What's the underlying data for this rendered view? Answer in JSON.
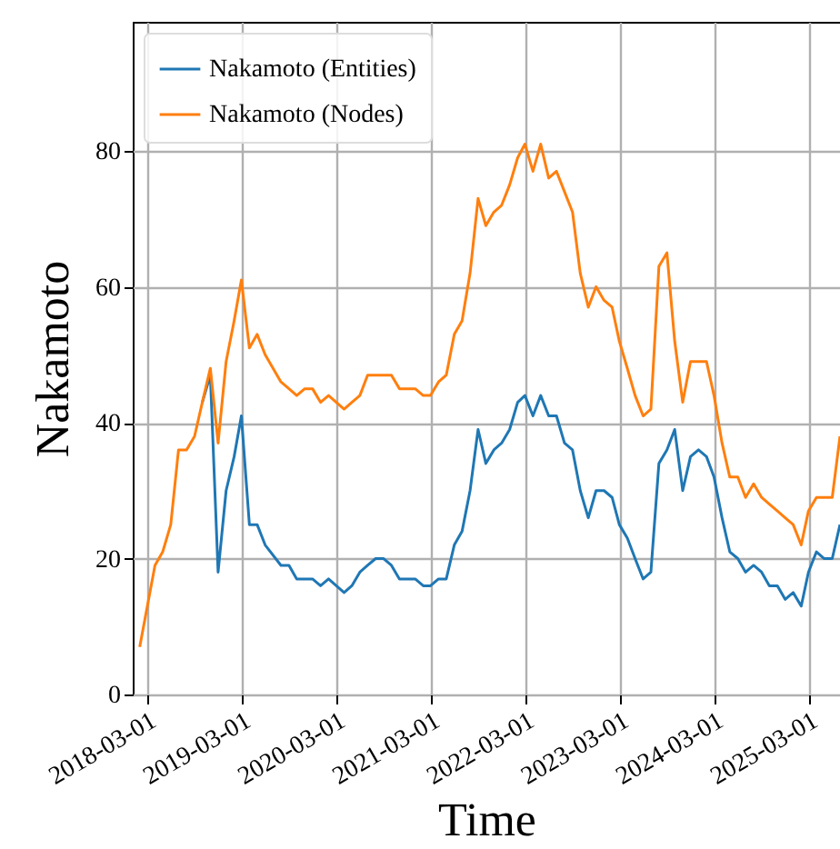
{
  "chart_data": {
    "type": "line",
    "xlabel": "Time",
    "ylabel": "Nakamoto",
    "x": [
      "2018-02-01",
      "2018-04-01",
      "2018-05-01",
      "2018-06-01",
      "2018-07-01",
      "2018-08-01",
      "2018-09-01",
      "2018-10-01",
      "2018-11-01",
      "2018-12-01",
      "2019-01-01",
      "2019-02-01",
      "2019-03-01",
      "2019-04-01",
      "2019-05-01",
      "2019-06-01",
      "2019-08-01",
      "2019-09-01",
      "2019-10-01",
      "2019-11-01",
      "2019-12-01",
      "2020-01-01",
      "2020-02-01",
      "2020-04-01",
      "2020-05-01",
      "2020-06-01",
      "2020-07-01",
      "2020-08-01",
      "2020-09-01",
      "2020-10-01",
      "2020-11-01",
      "2021-01-01",
      "2021-02-01",
      "2021-03-01",
      "2021-04-01",
      "2021-05-01",
      "2021-06-01",
      "2021-07-01",
      "2021-08-01",
      "2021-09-01",
      "2021-10-01",
      "2021-11-01",
      "2021-12-01",
      "2022-01-01",
      "2022-02-01",
      "2022-03-01",
      "2022-04-01",
      "2022-05-01",
      "2022-06-01",
      "2022-07-01",
      "2022-08-01",
      "2022-09-01",
      "2022-10-01",
      "2022-11-01",
      "2022-12-01",
      "2023-01-01",
      "2023-02-01",
      "2023-03-01",
      "2023-04-01",
      "2023-05-01",
      "2023-06-01",
      "2023-07-01",
      "2023-08-01",
      "2023-09-01",
      "2023-10-01",
      "2023-11-01",
      "2023-12-01",
      "2024-01-01",
      "2024-02-01",
      "2024-03-01",
      "2024-04-01",
      "2024-05-01",
      "2024-06-01",
      "2024-07-01",
      "2024-08-01",
      "2024-09-01",
      "2024-10-01",
      "2024-11-01",
      "2024-12-01",
      "2025-01-01",
      "2025-02-01",
      "2025-03-01",
      "2025-04-01",
      "2025-05-01",
      "2025-06-01",
      "2025-07-01"
    ],
    "series": [
      {
        "name": "Nakamoto (Entities)",
        "color": "#1f77b4",
        "values": [
          null,
          null,
          null,
          null,
          null,
          null,
          null,
          43,
          47,
          18,
          30,
          35,
          41,
          25,
          25,
          22,
          19,
          19,
          17,
          17,
          17,
          16,
          17,
          15,
          16,
          18,
          19,
          20,
          20,
          19,
          17,
          17,
          16,
          16,
          17,
          17,
          22,
          24,
          30,
          39,
          34,
          36,
          37,
          39,
          43,
          44,
          41,
          44,
          41,
          41,
          37,
          36,
          30,
          26,
          30,
          30,
          29,
          25,
          23,
          20,
          17,
          18,
          34,
          36,
          39,
          30,
          35,
          36,
          35,
          32,
          26,
          21,
          20,
          18,
          19,
          18,
          16,
          16,
          14,
          15,
          13,
          18,
          21,
          20,
          20,
          25
        ]
      },
      {
        "name": "Nakamoto (Nodes)",
        "color": "#ff7f0e",
        "values": [
          7,
          19,
          21,
          25,
          36,
          36,
          38,
          43,
          48,
          37,
          49,
          55,
          61,
          51,
          53,
          50,
          46,
          45,
          44,
          45,
          45,
          43,
          44,
          42,
          43,
          44,
          47,
          47,
          47,
          47,
          45,
          45,
          44,
          44,
          46,
          47,
          53,
          55,
          62,
          73,
          69,
          71,
          72,
          75,
          79,
          81,
          77,
          81,
          76,
          77,
          74,
          71,
          62,
          57,
          60,
          58,
          57,
          52,
          48,
          44,
          41,
          42,
          63,
          65,
          52,
          43,
          49,
          49,
          49,
          44,
          37,
          32,
          32,
          29,
          31,
          29,
          28,
          27,
          26,
          25,
          22,
          27,
          29,
          29,
          29,
          38
        ]
      }
    ],
    "xlim": [
      "2018-01-05",
      "2025-07-01"
    ],
    "xticks": [
      "2018-03-01",
      "2019-03-01",
      "2020-03-01",
      "2021-03-01",
      "2022-03-01",
      "2023-03-01",
      "2024-03-01",
      "2025-03-01"
    ],
    "ylim": [
      0,
      99
    ],
    "yticks": [
      0,
      20,
      40,
      60,
      80
    ],
    "grid": true,
    "legend": "top left"
  }
}
